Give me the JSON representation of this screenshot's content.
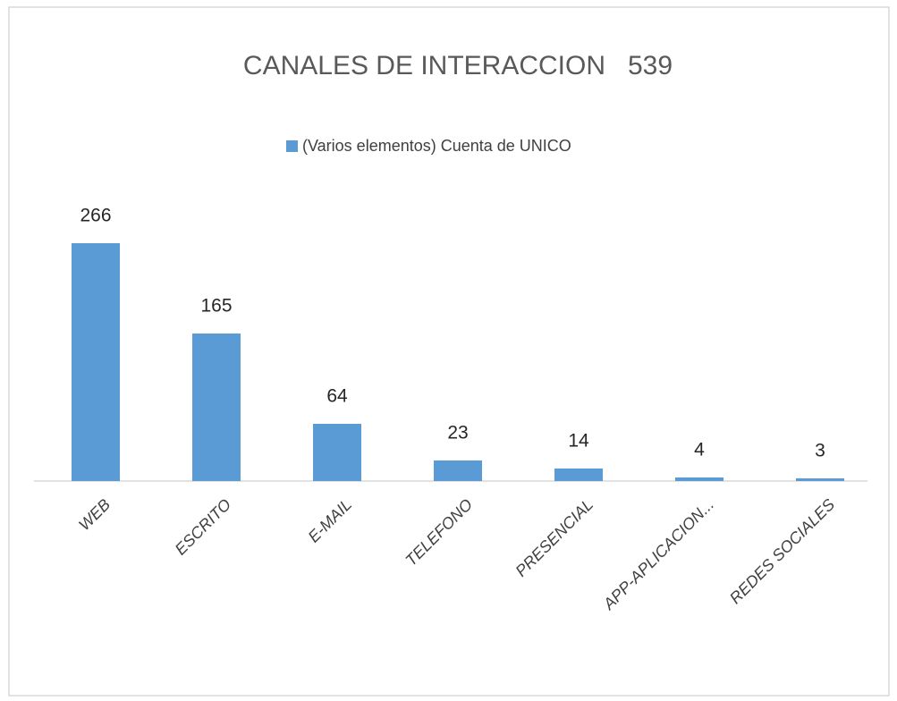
{
  "chart_data": {
    "type": "bar",
    "title": "CANALES DE INTERACCION   539",
    "series": [
      {
        "name": "(Varios elementos) Cuenta de UNICO",
        "color": "#5b9bd5",
        "values": [
          266,
          165,
          64,
          23,
          14,
          4,
          3
        ]
      }
    ],
    "categories": [
      "WEB",
      "ESCRITO",
      "E-MAIL",
      "TELEFONO",
      "PRESENCIAL",
      "APP-APLICACION...",
      "REDES SOCIALES"
    ]
  }
}
